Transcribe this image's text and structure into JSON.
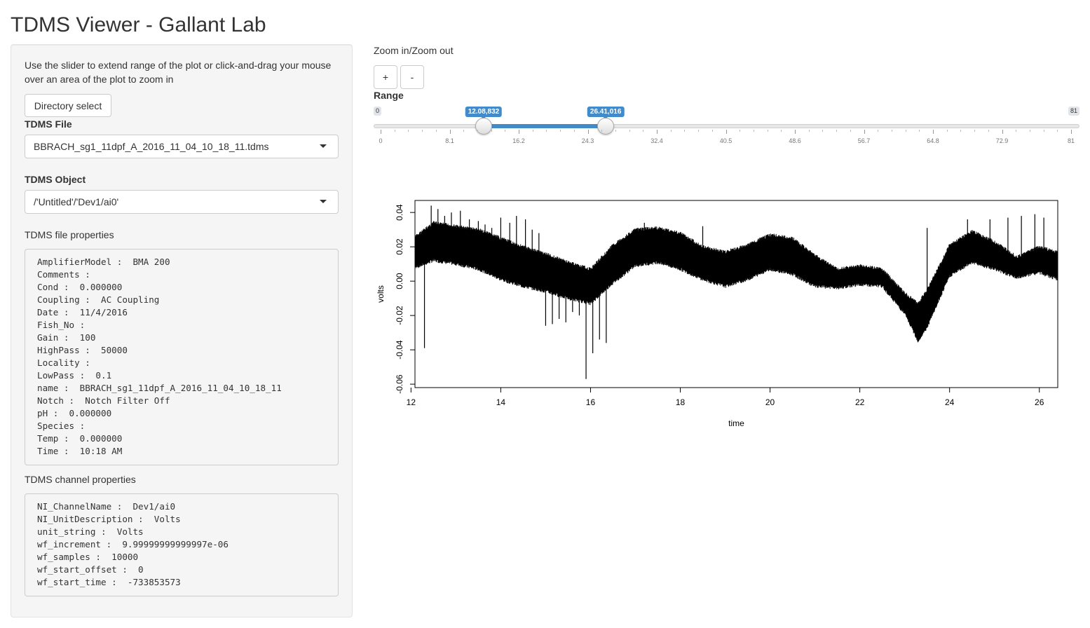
{
  "app": {
    "title": "TDMS Viewer - Gallant Lab"
  },
  "sidebar": {
    "instructions": "Use the slider to extend range of the plot or click-and-drag your mouse over an area of the plot to zoom in",
    "directory_button": "Directory select",
    "file_label": "TDMS File",
    "file_value": "BBRACH_sg1_11dpf_A_2016_11_04_10_18_11.tdms",
    "object_label": "TDMS Object",
    "object_value": "/'Untitled'/'Dev1/ai0'",
    "file_props_label": "TDMS file properties",
    "file_props": [
      "AmplifierModel :  BMA 200",
      "Comments :",
      "Cond :  0.000000",
      "Coupling :  AC Coupling",
      "Date :  11/4/2016",
      "Fish_No :",
      "Gain :  100",
      "HighPass :  50000",
      "Locality :",
      "LowPass :  0.1",
      "name :  BBRACH_sg1_11dpf_A_2016_11_04_10_18_11",
      "Notch :  Notch Filter Off",
      "pH :  0.000000",
      "Species :",
      "Temp :  0.000000",
      "Time :  10:18 AM"
    ],
    "channel_props_label": "TDMS channel properties",
    "channel_props": [
      "NI_ChannelName :  Dev1/ai0",
      "NI_UnitDescription :  Volts",
      "unit_string :  Volts",
      "wf_increment :  9.99999999999997e-06",
      "wf_samples :  10000",
      "wf_start_offset :  0",
      "wf_start_time :  -733853573"
    ]
  },
  "main": {
    "zoom_label": "Zoom in/Zoom out",
    "zoom_in": "+",
    "zoom_out": "-",
    "range_label": "Range",
    "slider": {
      "min": 0,
      "max": 81,
      "min_label": "0",
      "max_label": "81",
      "from": 12.08832,
      "to": 26.41016,
      "from_label": "12.08,832",
      "to_label": "26.41,016",
      "ticks": [
        "0",
        "8.1",
        "16.2",
        "24.3",
        "32.4",
        "40.5",
        "48.6",
        "56.7",
        "64.8",
        "72.9",
        "81"
      ],
      "accent": "#428bca"
    }
  },
  "chart_data": {
    "type": "line",
    "title": "",
    "xlabel": "time",
    "ylabel": "volts",
    "xlim": [
      12.08832,
      26.41016
    ],
    "ylim": [
      -0.062,
      0.047
    ],
    "xticks": [
      "12",
      "14",
      "16",
      "18",
      "20",
      "22",
      "24",
      "26"
    ],
    "yticks": [
      "-0.06",
      "-0.04",
      "-0.02",
      "0.00",
      "0.02",
      "0.04"
    ],
    "series": [
      {
        "envelope_x": [
          12.1,
          12.5,
          13.0,
          13.5,
          14.0,
          14.5,
          15.0,
          15.5,
          16.0,
          16.5,
          17.0,
          17.5,
          18.0,
          18.5,
          19.0,
          19.5,
          20.0,
          20.5,
          21.0,
          21.5,
          22.0,
          22.5,
          23.0,
          23.3,
          23.5,
          24.0,
          24.5,
          25.0,
          25.5,
          26.0,
          26.4
        ],
        "envelope_upper": [
          0.027,
          0.035,
          0.033,
          0.031,
          0.026,
          0.021,
          0.017,
          0.012,
          0.008,
          0.022,
          0.031,
          0.032,
          0.029,
          0.021,
          0.018,
          0.022,
          0.028,
          0.026,
          0.016,
          0.008,
          0.01,
          0.008,
          -0.006,
          -0.012,
          -0.004,
          0.022,
          0.03,
          0.024,
          0.015,
          0.021,
          0.018
        ],
        "envelope_lower": [
          0.007,
          0.011,
          0.009,
          0.006,
          0.0,
          -0.004,
          -0.007,
          -0.011,
          -0.014,
          -0.002,
          0.008,
          0.01,
          0.006,
          0.0,
          -0.004,
          0.0,
          0.006,
          0.003,
          -0.004,
          -0.005,
          -0.003,
          -0.004,
          -0.02,
          -0.036,
          -0.028,
          0.002,
          0.01,
          0.006,
          0.001,
          0.004,
          0.0
        ],
        "spikes_x": [
          12.3,
          12.45,
          12.6,
          12.75,
          12.9,
          13.1,
          13.3,
          13.5,
          13.65,
          13.8,
          14.0,
          14.2,
          14.35,
          14.55,
          14.7,
          14.85,
          15.0,
          15.15,
          15.3,
          15.45,
          15.6,
          15.75,
          15.9,
          16.05,
          16.2,
          16.35,
          17.2,
          18.5,
          23.5,
          24.4,
          24.9,
          25.3,
          25.6,
          25.9,
          26.1
        ],
        "spikes_y": [
          -0.039,
          0.044,
          0.042,
          0.038,
          0.04,
          0.041,
          0.036,
          0.035,
          0.033,
          0.031,
          0.037,
          0.034,
          0.038,
          0.036,
          0.03,
          0.028,
          -0.026,
          -0.025,
          -0.022,
          -0.024,
          -0.018,
          -0.02,
          -0.057,
          -0.042,
          -0.034,
          -0.036,
          0.034,
          0.032,
          0.031,
          0.036,
          0.036,
          0.037,
          0.038,
          0.039,
          0.037
        ]
      }
    ]
  }
}
